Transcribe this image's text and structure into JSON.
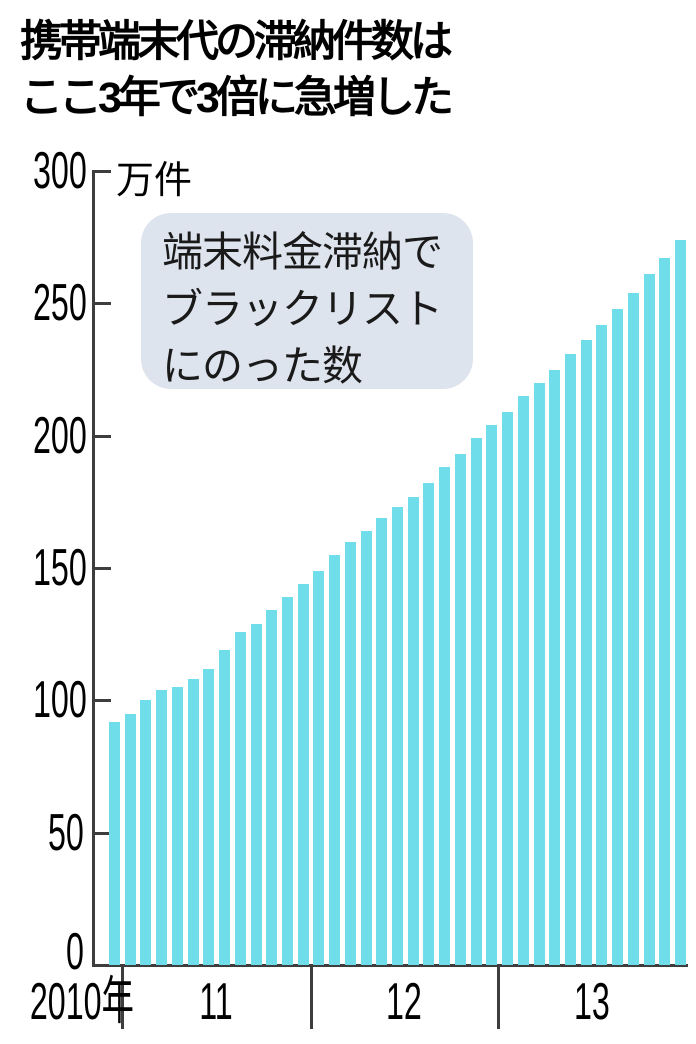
{
  "title": {
    "line1": "携帯端末代の滞納件数は",
    "line2": "ここ3年で3倍に急増した"
  },
  "annotation": {
    "line1": "端末料金滞納で",
    "line2": "ブラックリスト",
    "line3": "にのった数"
  },
  "chart_data": {
    "type": "bar",
    "title": "携帯端末代の滞納件数はここ3年で3倍に急増した",
    "annotation": "端末料金滞納でブラックリストにのった数",
    "unit": "万件",
    "ylabel": "万件",
    "ylim": [
      0,
      300
    ],
    "y_ticks": [
      0,
      50,
      100,
      150,
      200,
      250,
      300
    ],
    "x_axis_start_label": "2010年",
    "x_year_labels": [
      "11",
      "12",
      "13"
    ],
    "periodicity": "monthly",
    "bars_per_year": {
      "2010": 1,
      "2011": 12,
      "2012": 12,
      "2013": 12
    },
    "grid": false,
    "legend": false,
    "values": [
      92,
      95,
      100,
      104,
      105,
      108,
      112,
      119,
      126,
      129,
      134,
      139,
      144,
      149,
      155,
      160,
      164,
      169,
      173,
      177,
      182,
      188,
      193,
      199,
      204,
      209,
      215,
      220,
      225,
      231,
      236,
      242,
      248,
      254,
      261,
      267,
      274
    ]
  },
  "colors": {
    "bar": "#6fdeea",
    "bubble_bg": "#dee4ee",
    "axis": "#3d3d3d",
    "text": "#000000"
  }
}
